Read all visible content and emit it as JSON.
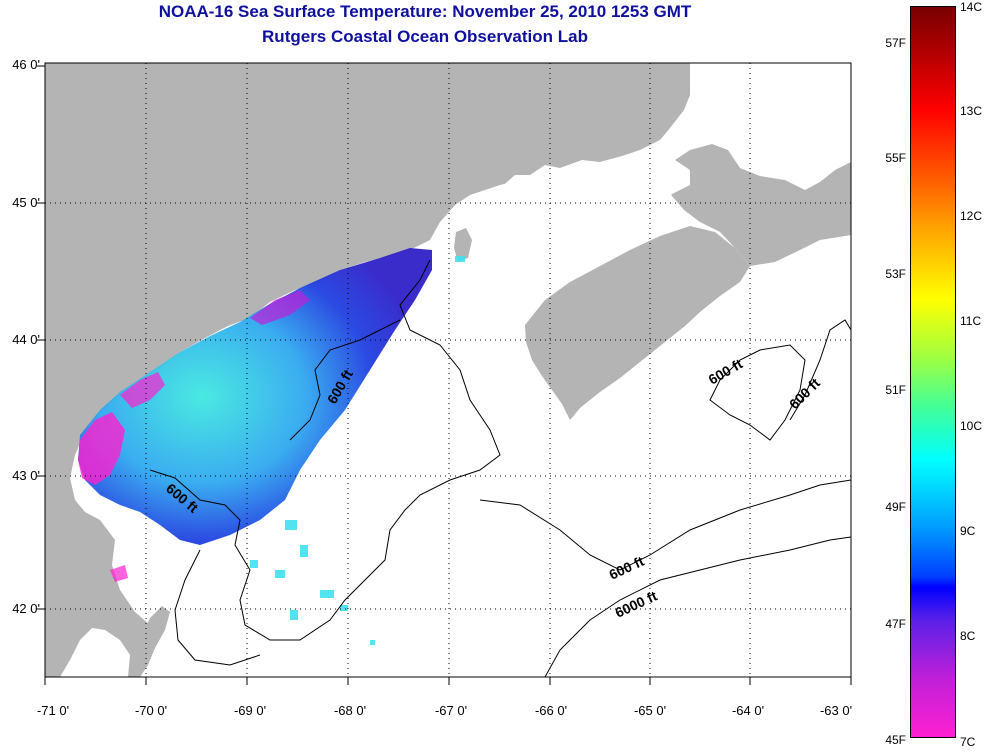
{
  "title": {
    "line1": "NOAA-16 Sea Surface Temperature:  November 25, 2010 1253 GMT",
    "line2": "Rutgers Coastal Ocean Observation Lab"
  },
  "axes": {
    "latitude_labels": [
      "46 0'",
      "45 0'",
      "44 0'",
      "43 0'",
      "42 0'"
    ],
    "longitude_labels": [
      "-71 0'",
      "-70 0'",
      "-69 0'",
      "-68 0'",
      "-67 0'",
      "-66 0'",
      "-65 0'",
      "-64 0'",
      "-63 0'"
    ],
    "lat_range": [
      41.55,
      46.0
    ],
    "lon_range": [
      -71.0,
      -63.0
    ],
    "grid": "dotted"
  },
  "contour_labels": [
    "600 ft",
    "600 ft",
    "600 ft",
    "600 ft",
    "600 ft",
    "6000 ft"
  ],
  "colorbar": {
    "celsius_labels": [
      "14C",
      "13C",
      "12C",
      "11C",
      "10C",
      "9C",
      "8C",
      "7C"
    ],
    "fahrenheit_labels": [
      "57F",
      "55F",
      "53F",
      "51F",
      "49F",
      "47F",
      "45F"
    ],
    "range_c": [
      7,
      14
    ]
  },
  "colors": {
    "land": "#b4b4b4",
    "water": "#ffffff",
    "title": "#1010a0"
  }
}
